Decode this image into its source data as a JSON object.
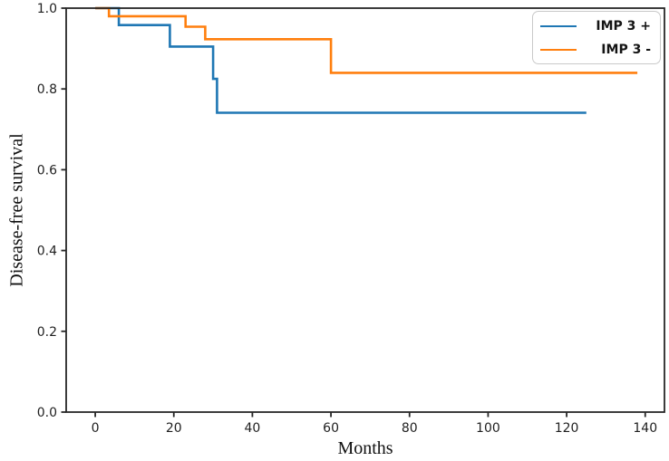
{
  "chart_data": {
    "type": "line",
    "subtype": "kaplan-meier-step",
    "title": "",
    "xlabel": "Months",
    "ylabel": "Disease-free survival",
    "xlim": [
      -7.4,
      144.9
    ],
    "ylim": [
      0.0,
      1.0
    ],
    "x_ticks": {
      "values": [
        0,
        20,
        40,
        60,
        80,
        100,
        120,
        140
      ],
      "labels": [
        "0",
        "20",
        "40",
        "60",
        "80",
        "100",
        "120",
        "140"
      ]
    },
    "y_ticks": {
      "values": [
        0.0,
        0.2,
        0.4,
        0.6,
        0.8,
        1.0
      ],
      "labels": [
        "0.0",
        "0.2",
        "0.4",
        "0.6",
        "0.8",
        "1.0"
      ]
    },
    "grid": false,
    "axis_color": "#262626",
    "legend_position": "upper-right",
    "series": [
      {
        "name": "IMP 3 +",
        "color": "#1f77b4",
        "events": [
          [
            0,
            1.0
          ],
          [
            6,
            0.958
          ],
          [
            19,
            0.905
          ],
          [
            30,
            0.825
          ],
          [
            31,
            0.741
          ]
        ],
        "end_x": 125
      },
      {
        "name": "IMP 3 -",
        "color": "#ff7f0e",
        "events": [
          [
            0,
            1.0
          ],
          [
            3.5,
            0.98
          ],
          [
            23,
            0.954
          ],
          [
            28,
            0.923
          ],
          [
            60,
            0.84
          ]
        ],
        "end_x": 138
      }
    ]
  }
}
